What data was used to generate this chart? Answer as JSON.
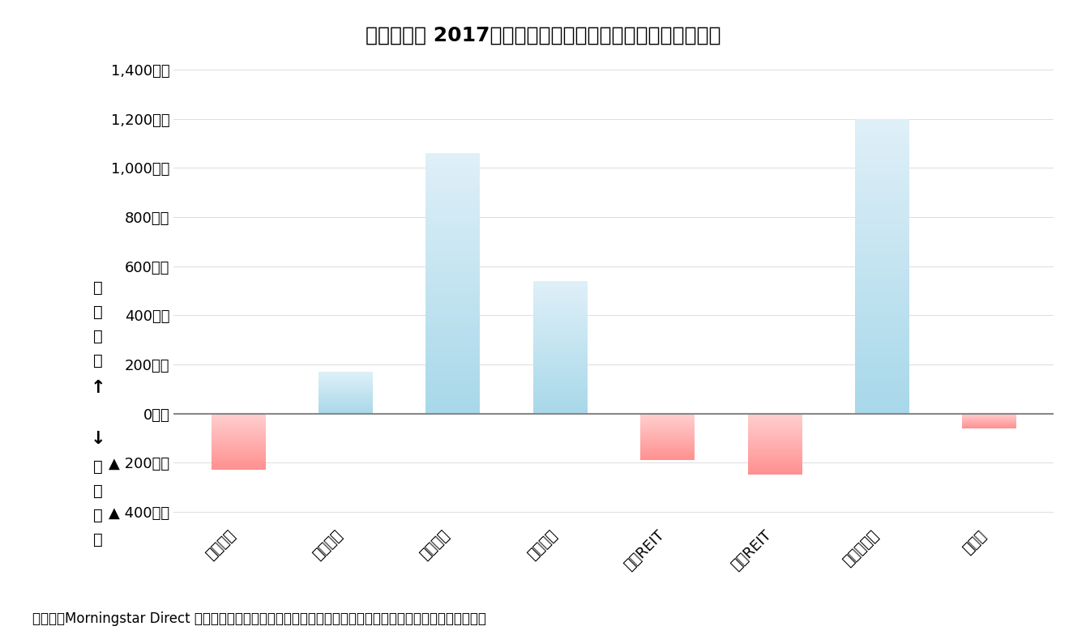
{
  "title": "》図表１「 2017年４月の国内追加型投信の推計資金流出入",
  "title_raw": "【図表１】 2017年４月の国内追加型投信の推計資金流出入",
  "categories": [
    "国内株式",
    "国内債券",
    "外国株式",
    "外国債券",
    "外国REIT",
    "国内REIT",
    "バランス型",
    "その他"
  ],
  "values": [
    -230,
    170,
    1060,
    540,
    -190,
    -250,
    1200,
    -60
  ],
  "bar_width": 0.5,
  "ylim_min": -450,
  "ylim_max": 1450,
  "yticks": [
    -400,
    -200,
    0,
    200,
    400,
    600,
    800,
    1000,
    1200,
    1400
  ],
  "ytick_labels": [
    "▲ 400億円",
    "▲ 200億円",
    "0億円",
    "200億円",
    "400億円",
    "600億円",
    "800億円",
    "1,000億円",
    "1,200億円",
    "1,400億円"
  ],
  "zero_line_color": "#888888",
  "caption": "（資料）Morningstar Direct を用いて筆者集計。各資産クラスはイボットソン分類を用いてファンドを分類。",
  "background_color": "#ffffff",
  "title_fontsize": 18,
  "tick_fontsize": 13,
  "caption_fontsize": 12,
  "ylabel_top": "入",
  "ylabel_arrow_up": "↑",
  "ylabel_arrow_down": "↓",
  "ylabel_outflow": "資金流出",
  "ylabel_bottom": "出"
}
